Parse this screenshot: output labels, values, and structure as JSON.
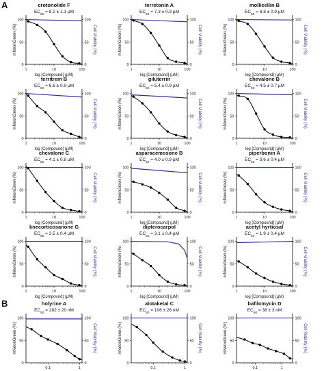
{
  "panel_letters": [
    "A",
    "B"
  ],
  "colors": {
    "dose_response": "#000000",
    "cell_viability": "#2e3192"
  },
  "chart_data": [
    {
      "type": "line",
      "title": "crotonolide F",
      "subtitle": "EC50 = 8.2 ± 1.1 µM",
      "xlabel": "log [Compound] (µM)",
      "ylabel": "mNeonGreen (%)",
      "y2label": "Cell Viability (%)",
      "xscale": "log",
      "xlim": [
        1,
        100
      ],
      "xticks": [
        "1",
        "10",
        "100"
      ],
      "ylim": [
        0,
        110
      ],
      "yticks": [
        "0",
        "50",
        "100"
      ],
      "series": [
        {
          "points": [
            [
              1.2,
              96
            ],
            [
              2.5,
              88
            ],
            [
              5,
              73
            ],
            [
              10,
              45
            ],
            [
              20,
              18
            ],
            [
              40,
              5
            ],
            [
              80,
              2
            ]
          ]
        }
      ],
      "viability": [
        [
          1,
          100
        ],
        [
          100,
          97
        ]
      ]
    },
    {
      "type": "line",
      "title": "terretonin A",
      "subtitle": "EC50 = 7.3 ± 0.9 µM",
      "xlabel": "log [Compound] (µM)",
      "ylabel": "mNeonGreen (%)",
      "y2label": "Cell Viability (%)",
      "xscale": "log",
      "xlim": [
        1,
        100
      ],
      "xticks": [
        "1",
        "10",
        "100"
      ],
      "ylim": [
        0,
        110
      ],
      "yticks": [
        "0",
        "50",
        "100"
      ],
      "series": [
        {
          "points": [
            [
              1.2,
              98
            ],
            [
              2.5,
              90
            ],
            [
              5,
              70
            ],
            [
              10,
              42
            ],
            [
              20,
              14
            ],
            [
              40,
              6
            ],
            [
              80,
              3
            ]
          ]
        }
      ],
      "viability": [
        [
          1,
          100
        ],
        [
          100,
          95
        ]
      ]
    },
    {
      "type": "line",
      "title": "mollicellin B",
      "subtitle": "EC50 = 6.8 ± 0.9 µM",
      "xlabel": "log [Compound] (µM)",
      "ylabel": "mNeonGreen (%)",
      "y2label": "Cell Viability (%)",
      "xscale": "log",
      "xlim": [
        1,
        100
      ],
      "xticks": [
        "1",
        "10",
        "100"
      ],
      "ylim": [
        0,
        110
      ],
      "yticks": [
        "0",
        "50",
        "100"
      ],
      "series": [
        {
          "points": [
            [
              1.2,
              97
            ],
            [
              2.5,
              90
            ],
            [
              5,
              68
            ],
            [
              10,
              40
            ],
            [
              20,
              15
            ],
            [
              40,
              6
            ],
            [
              80,
              3
            ]
          ]
        }
      ],
      "viability": [
        [
          1,
          100
        ],
        [
          100,
          99
        ]
      ]
    },
    {
      "type": "line",
      "title": "territrem B",
      "subtitle": "EC50 = 6.6 ± 0.9 µM",
      "xlabel": "log [Compound] (µM)",
      "ylabel": "mNeonGreen (%)",
      "y2label": "Cell Viability (%)",
      "xscale": "log",
      "xlim": [
        1,
        100
      ],
      "xticks": [
        "1",
        "10",
        "100"
      ],
      "ylim": [
        0,
        110
      ],
      "yticks": [
        "0",
        "50",
        "100"
      ],
      "series": [
        {
          "points": [
            [
              1.2,
              95
            ],
            [
              2.5,
              72
            ],
            [
              5,
              58
            ],
            [
              10,
              37
            ],
            [
              20,
              18
            ],
            [
              40,
              10
            ],
            [
              80,
              3
            ]
          ]
        }
      ],
      "viability": [
        [
          1,
          100
        ],
        [
          100,
          92
        ]
      ]
    },
    {
      "type": "line",
      "title": "giluterrin",
      "subtitle": "EC50 = 5.4 ± 0.9 µM",
      "xlabel": "log [Compound] (µM)",
      "ylabel": "mNeonGreen (%)",
      "y2label": "Cell Viability (%)",
      "xscale": "log",
      "xlim": [
        1,
        100
      ],
      "xticks": [
        "1",
        "10",
        "100"
      ],
      "ylim": [
        0,
        110
      ],
      "yticks": [
        "0",
        "50",
        "100"
      ],
      "series": [
        {
          "points": [
            [
              1.2,
              93
            ],
            [
              2.5,
              78
            ],
            [
              5,
              58
            ],
            [
              10,
              33
            ],
            [
              20,
              15
            ],
            [
              40,
              7
            ],
            [
              80,
              3
            ]
          ]
        }
      ],
      "viability": [
        [
          1,
          97
        ],
        [
          100,
          90
        ]
      ]
    },
    {
      "type": "line",
      "title": "chevalone B",
      "subtitle": "EC50 = 4.5 ± 0.7 µM",
      "xlabel": "log [Compound] (µM)",
      "ylabel": "mNeonGreen (%)",
      "y2label": "Cell Viability (%)",
      "xscale": "log",
      "xlim": [
        1,
        100
      ],
      "xticks": [
        "1",
        "10",
        "100"
      ],
      "ylim": [
        0,
        110
      ],
      "yticks": [
        "0",
        "50",
        "100"
      ],
      "series": [
        {
          "points": [
            [
              1.2,
              95
            ],
            [
              2.5,
              88
            ],
            [
              5,
              55
            ],
            [
              10,
              20
            ],
            [
              20,
              8
            ],
            [
              40,
              3
            ],
            [
              80,
              2
            ]
          ]
        }
      ],
      "viability": [
        [
          1,
          100
        ],
        [
          100,
          97
        ]
      ]
    },
    {
      "type": "line",
      "title": "chevalone C",
      "subtitle": "EC50 = 4.1 ± 0.8 µM",
      "xlabel": "log [Compound] (µM)",
      "ylabel": "mNeonGreen (%)",
      "y2label": "Cell Viability (%)",
      "xscale": "log",
      "xlim": [
        1,
        100
      ],
      "xticks": [
        "1",
        "10",
        "100"
      ],
      "ylim": [
        0,
        110
      ],
      "yticks": [
        "0",
        "50",
        "100"
      ],
      "series": [
        {
          "points": [
            [
              1.2,
              98
            ],
            [
              2.5,
              70
            ],
            [
              5,
              45
            ],
            [
              10,
              25
            ],
            [
              20,
              10
            ],
            [
              40,
              5
            ],
            [
              80,
              2
            ]
          ]
        }
      ],
      "viability": [
        [
          1,
          100
        ],
        [
          100,
          100
        ]
      ]
    },
    {
      "type": "line",
      "title": "asparacemosone B",
      "subtitle": "EC50 = 4.0 ± 0.9 µM",
      "xlabel": "log [Compound] (µM)",
      "ylabel": "mNeonGreen (%)",
      "y2label": "Cell Viability (%)",
      "xscale": "log",
      "xlim": [
        1,
        100
      ],
      "xticks": [
        "1",
        "10",
        "100"
      ],
      "ylim": [
        0,
        110
      ],
      "yticks": [
        "0",
        "50",
        "100"
      ],
      "series": [
        {
          "points": [
            [
              1.2,
              68
            ],
            [
              2.5,
              62
            ],
            [
              5,
              55
            ],
            [
              10,
              43
            ],
            [
              20,
              28
            ],
            [
              40,
              10
            ],
            [
              80,
              3
            ]
          ]
        }
      ],
      "viability": [
        [
          1,
          98
        ],
        [
          100,
          88
        ]
      ]
    },
    {
      "type": "line",
      "title": "piperbonin A",
      "subtitle": "EC50 = 3.6 ± 0.4 µM",
      "xlabel": "log [Compound] (µM)",
      "ylabel": "mNeonGreen (%)",
      "y2label": "Cell Viability (%)",
      "xscale": "log",
      "xlim": [
        1,
        100
      ],
      "xticks": [
        "1",
        "10",
        "100"
      ],
      "ylim": [
        0,
        110
      ],
      "yticks": [
        "0",
        "50",
        "100"
      ],
      "series": [
        {
          "points": [
            [
              1.2,
              82
            ],
            [
              2.5,
              63
            ],
            [
              5,
              40
            ],
            [
              10,
              22
            ],
            [
              20,
              12
            ],
            [
              40,
              6
            ],
            [
              80,
              3
            ]
          ]
        }
      ],
      "viability": [
        [
          1,
          100
        ],
        [
          100,
          100
        ]
      ]
    },
    {
      "type": "line",
      "title": "knecorticosanone G",
      "subtitle": "EC50 = 3.5 ± 0.4 µM",
      "xlabel": "log [Compound] (µM)",
      "ylabel": "mNeonGreen (%)",
      "y2label": "Cell Viability (%)",
      "xscale": "log",
      "xlim": [
        1,
        100
      ],
      "xticks": [
        "1",
        "10",
        "100"
      ],
      "ylim": [
        0,
        110
      ],
      "yticks": [
        "0",
        "50",
        "100"
      ],
      "series": [
        {
          "points": [
            [
              1.2,
              88
            ],
            [
              2.5,
              60
            ],
            [
              5,
              42
            ],
            [
              10,
              25
            ],
            [
              20,
              16
            ],
            [
              40,
              6
            ],
            [
              80,
              2
            ]
          ]
        }
      ],
      "viability": [
        [
          1,
          100
        ],
        [
          100,
          100
        ]
      ]
    },
    {
      "type": "line",
      "title": "dipterocarpol",
      "subtitle": "EC50 = 3.1 ± 0.4 µM",
      "xlabel": "log [Compound] (µM)",
      "ylabel": "mNeonGreen (%)",
      "y2label": "Cell Viability (%)",
      "xscale": "log",
      "xlim": [
        1,
        100
      ],
      "xticks": [
        "1",
        "10",
        "100"
      ],
      "ylim": [
        0,
        110
      ],
      "yticks": [
        "0",
        "50",
        "100"
      ],
      "series": [
        {
          "points": [
            [
              1.2,
              72
            ],
            [
              2.5,
              58
            ],
            [
              5,
              45
            ],
            [
              10,
              25
            ],
            [
              20,
              10
            ],
            [
              40,
              4
            ],
            [
              80,
              2
            ]
          ]
        }
      ],
      "viability": [
        [
          1,
          100
        ],
        [
          20,
          99
        ],
        [
          50,
          94
        ],
        [
          80,
          80
        ],
        [
          100,
          62
        ]
      ]
    },
    {
      "type": "line",
      "title": "acetyl hyrtiosal",
      "subtitle": "EC50 = 1.9 ± 0.4 µM",
      "xlabel": "log [Compound] (µM)",
      "ylabel": "mNeonGreen (%)",
      "y2label": "Cell Viability (%)",
      "xscale": "log",
      "xlim": [
        1,
        100
      ],
      "xticks": [
        "1",
        "10",
        "100"
      ],
      "ylim": [
        0,
        110
      ],
      "yticks": [
        "0",
        "50",
        "100"
      ],
      "series": [
        {
          "points": [
            [
              1.2,
              55
            ],
            [
              2.5,
              42
            ],
            [
              5,
              28
            ],
            [
              10,
              18
            ],
            [
              20,
              10
            ],
            [
              40,
              5
            ],
            [
              80,
              2
            ]
          ]
        }
      ],
      "viability": [
        [
          1,
          97
        ],
        [
          100,
          100
        ]
      ]
    },
    {
      "type": "line",
      "title": "holyrine A",
      "subtitle": "EC50 = 282 ± 20 nM",
      "xlabel": "log [Compound] (µM)",
      "ylabel": "mNeonGreen (%)",
      "y2label": "Cell Viability (%)",
      "xscale": "log",
      "xlim": [
        0.02,
        1.2
      ],
      "xticks": [
        "0.1",
        "1"
      ],
      "ylim": [
        0,
        110
      ],
      "yticks": [
        "0",
        "50",
        "100"
      ],
      "series": [
        {
          "points": [
            [
              0.03,
              75
            ],
            [
              0.06,
              60
            ],
            [
              0.1,
              52
            ],
            [
              0.2,
              42
            ],
            [
              0.4,
              28
            ],
            [
              0.7,
              15
            ],
            [
              1.0,
              8
            ]
          ]
        }
      ],
      "viability": [
        [
          0.02,
          98
        ],
        [
          1.2,
          98
        ]
      ]
    },
    {
      "type": "line",
      "title": "alotaketal C",
      "subtitle": "EC50 = 106 ± 26 nM",
      "xlabel": "log [Compound] (µM)",
      "ylabel": "mNeonGreen (%)",
      "y2label": "Cell Viability (%)",
      "xscale": "log",
      "xlim": [
        0.02,
        1.2
      ],
      "xticks": [
        "0.1",
        "1"
      ],
      "ylim": [
        0,
        110
      ],
      "yticks": [
        "0",
        "50",
        "100"
      ],
      "series": [
        {
          "points": [
            [
              0.03,
              80
            ],
            [
              0.06,
              62
            ],
            [
              0.1,
              45
            ],
            [
              0.2,
              25
            ],
            [
              0.4,
              12
            ],
            [
              0.7,
              5
            ],
            [
              1.0,
              3
            ]
          ]
        }
      ],
      "viability": [
        [
          0.02,
          100
        ],
        [
          1.2,
          100
        ]
      ]
    },
    {
      "type": "line",
      "title": "bafilomycin D",
      "subtitle": "EC50 = 38 ± 3 nM",
      "xlabel": "log [Compound] (µM)",
      "ylabel": "mNeonGreen (%)",
      "y2label": "Cell Viability (%)",
      "xscale": "log",
      "xlim": [
        0.02,
        2.5
      ],
      "xticks": [
        "0.1",
        "1"
      ],
      "ylim": [
        0,
        110
      ],
      "yticks": [
        "0",
        "50",
        "100"
      ],
      "series": [
        {
          "points": [
            [
              0.04,
              52
            ],
            [
              0.08,
              44
            ],
            [
              0.15,
              40
            ],
            [
              0.3,
              32
            ],
            [
              0.6,
              26
            ],
            [
              1.2,
              20
            ],
            [
              2.0,
              10
            ]
          ]
        }
      ],
      "viability": [
        [
          0.02,
          100
        ],
        [
          2.5,
          100
        ]
      ]
    }
  ]
}
